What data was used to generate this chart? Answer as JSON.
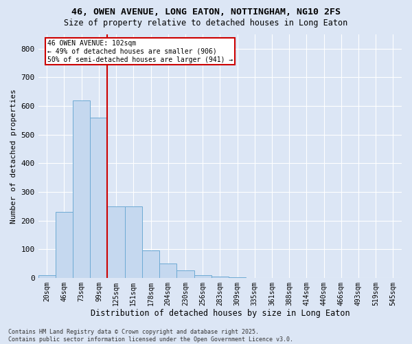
{
  "title1": "46, OWEN AVENUE, LONG EATON, NOTTINGHAM, NG10 2FS",
  "title2": "Size of property relative to detached houses in Long Eaton",
  "xlabel": "Distribution of detached houses by size in Long Eaton",
  "ylabel": "Number of detached properties",
  "categories": [
    "20sqm",
    "46sqm",
    "73sqm",
    "99sqm",
    "125sqm",
    "151sqm",
    "178sqm",
    "204sqm",
    "230sqm",
    "256sqm",
    "283sqm",
    "309sqm",
    "335sqm",
    "361sqm",
    "388sqm",
    "414sqm",
    "440sqm",
    "466sqm",
    "493sqm",
    "519sqm",
    "545sqm"
  ],
  "values": [
    10,
    230,
    620,
    560,
    250,
    250,
    95,
    50,
    25,
    10,
    5,
    2,
    0,
    0,
    0,
    0,
    0,
    0,
    0,
    0,
    0
  ],
  "bar_color": "#c5d8ef",
  "bar_edge_color": "#6daad4",
  "background_color": "#dce6f5",
  "grid_color": "#ffffff",
  "vline_color": "#cc0000",
  "annotation_text": "46 OWEN AVENUE: 102sqm\n← 49% of detached houses are smaller (906)\n50% of semi-detached houses are larger (941) →",
  "annotation_box_color": "#cc0000",
  "footer": "Contains HM Land Registry data © Crown copyright and database right 2025.\nContains public sector information licensed under the Open Government Licence v3.0.",
  "ylim": [
    0,
    850
  ],
  "yticks": [
    0,
    100,
    200,
    300,
    400,
    500,
    600,
    700,
    800
  ]
}
